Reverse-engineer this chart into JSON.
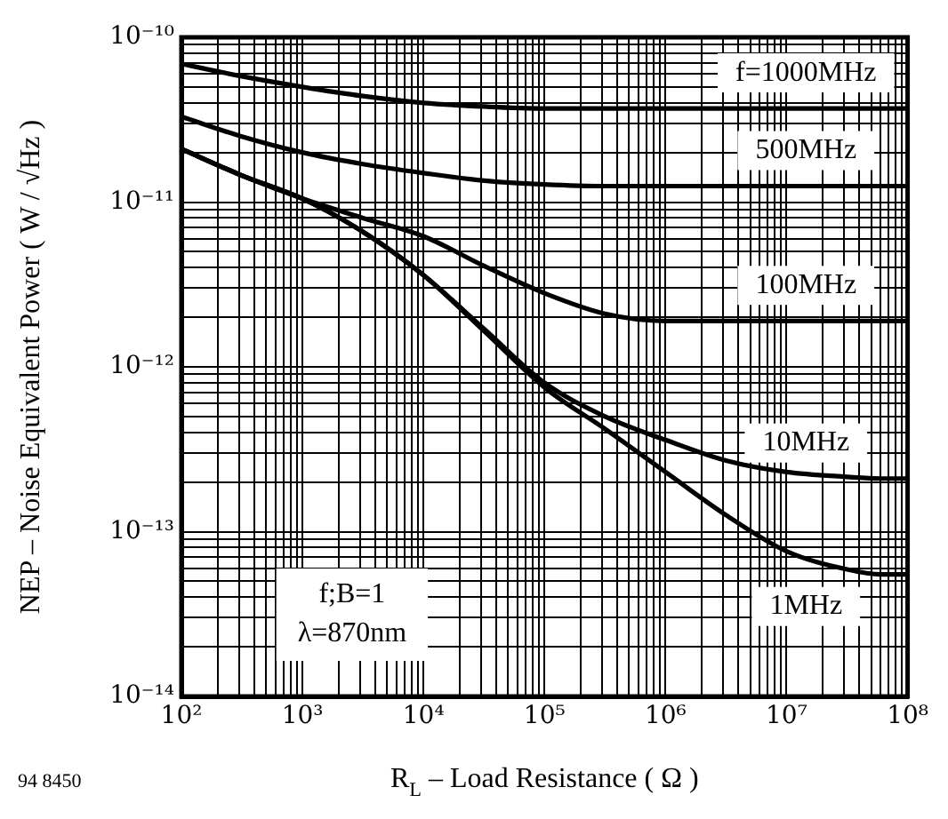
{
  "chart_data": {
    "type": "line",
    "xlabel": "R$_{L}$ – Load Resistance ( Ω )",
    "ylabel": "NEP – Noise Equivalent Power ( W / √Hz )",
    "log": "xy",
    "grid": true,
    "legend": false,
    "marker": "none",
    "line_style": "solid",
    "annotations": [
      "f;B=1",
      "λ=870nm",
      "94 8450"
    ],
    "x": [
      100,
      316,
      1000,
      3162,
      10000,
      31623,
      100000,
      316228,
      1000000,
      3162278,
      10000000,
      31622777,
      60000000,
      100000000
    ],
    "series": [
      {
        "name": "f=1000MHz",
        "color": "#000000",
        "values": [
          6.9e-11,
          5.8e-11,
          5e-11,
          4.4e-11,
          4e-11,
          3.8e-11,
          3.7e-11,
          3.7e-11,
          3.7e-11,
          3.7e-11,
          3.7e-11,
          3.7e-11,
          3.7e-11,
          3.7e-11
        ]
      },
      {
        "name": "500MHz",
        "color": "#000000",
        "values": [
          3.3e-11,
          2.5e-11,
          2e-11,
          1.7e-11,
          1.5e-11,
          1.35e-11,
          1.28e-11,
          1.25e-11,
          1.25e-11,
          1.25e-11,
          1.25e-11,
          1.25e-11,
          1.25e-11,
          1.25e-11
        ]
      },
      {
        "name": "100MHz",
        "color": "#000000",
        "values": [
          2.1e-11,
          1.45e-11,
          1.05e-11,
          8e-12,
          6.2e-12,
          4.1e-12,
          2.8e-12,
          2.1e-12,
          1.9e-12,
          1.9e-12,
          1.9e-12,
          1.9e-12,
          1.9e-12,
          1.9e-12
        ]
      },
      {
        "name": "10MHz",
        "color": "#000000",
        "values": [
          2.1e-11,
          1.45e-11,
          1.05e-11,
          6.6e-12,
          3.6e-12,
          1.7e-12,
          8e-13,
          5e-13,
          3.6e-13,
          2.7e-13,
          2.3e-13,
          2.15e-13,
          2.1e-13,
          2.1e-13
        ]
      },
      {
        "name": "1MHz",
        "color": "#000000",
        "values": [
          2.1e-11,
          1.45e-11,
          1.05e-11,
          6.6e-12,
          3.6e-12,
          1.65e-12,
          7.5e-13,
          4.2e-13,
          2.3e-13,
          1.26e-13,
          7.6e-14,
          5.9e-14,
          5.5e-14,
          5.5e-14
        ]
      }
    ],
    "xlim": [
      100,
      100000000
    ],
    "ylim": [
      1e-14,
      1e-10
    ],
    "xticks": [
      {
        "value": 100,
        "label": "10²"
      },
      {
        "value": 200,
        "label": null
      },
      {
        "value": 300,
        "label": null
      },
      {
        "value": 400,
        "label": null
      },
      {
        "value": 500,
        "label": null
      },
      {
        "value": 600,
        "label": null
      },
      {
        "value": 700,
        "label": null
      },
      {
        "value": 800,
        "label": null
      },
      {
        "value": 900,
        "label": null
      },
      {
        "value": 1000,
        "label": "10³"
      },
      {
        "value": 2000,
        "label": null
      },
      {
        "value": 3000,
        "label": null
      },
      {
        "value": 4000,
        "label": null
      },
      {
        "value": 5000,
        "label": null
      },
      {
        "value": 6000,
        "label": null
      },
      {
        "value": 7000,
        "label": null
      },
      {
        "value": 8000,
        "label": null
      },
      {
        "value": 9000,
        "label": null
      },
      {
        "value": 10000,
        "label": "10⁴"
      },
      {
        "value": 20000,
        "label": null
      },
      {
        "value": 30000,
        "label": null
      },
      {
        "value": 40000,
        "label": null
      },
      {
        "value": 50000,
        "label": null
      },
      {
        "value": 60000,
        "label": null
      },
      {
        "value": 70000,
        "label": null
      },
      {
        "value": 80000,
        "label": null
      },
      {
        "value": 90000,
        "label": null
      },
      {
        "value": 100000,
        "label": "10⁵"
      },
      {
        "value": 200000,
        "label": null
      },
      {
        "value": 300000,
        "label": null
      },
      {
        "value": 400000,
        "label": null
      },
      {
        "value": 500000,
        "label": null
      },
      {
        "value": 600000,
        "label": null
      },
      {
        "value": 700000,
        "label": null
      },
      {
        "value": 800000,
        "label": null
      },
      {
        "value": 900000,
        "label": null
      },
      {
        "value": 1000000,
        "label": "10⁶"
      },
      {
        "value": 2000000,
        "label": null
      },
      {
        "value": 3000000,
        "label": null
      },
      {
        "value": 4000000,
        "label": null
      },
      {
        "value": 5000000,
        "label": null
      },
      {
        "value": 6000000,
        "label": null
      },
      {
        "value": 7000000,
        "label": null
      },
      {
        "value": 8000000,
        "label": null
      },
      {
        "value": 9000000,
        "label": null
      },
      {
        "value": 10000000,
        "label": "10⁷"
      },
      {
        "value": 20000000,
        "label": null
      },
      {
        "value": 30000000,
        "label": null
      },
      {
        "value": 40000000,
        "label": null
      },
      {
        "value": 50000000,
        "label": null
      },
      {
        "value": 60000000,
        "label": null
      },
      {
        "value": 70000000,
        "label": null
      },
      {
        "value": 80000000,
        "label": null
      },
      {
        "value": 90000000,
        "label": null
      },
      {
        "value": 100000000,
        "label": "10⁸"
      }
    ],
    "yticks": [
      {
        "value": 1e-14,
        "label": "10⁻¹⁴"
      },
      {
        "value": 2e-14,
        "label": null
      },
      {
        "value": 3e-14,
        "label": null
      },
      {
        "value": 4e-14,
        "label": null
      },
      {
        "value": 5e-14,
        "label": null
      },
      {
        "value": 6e-14,
        "label": null
      },
      {
        "value": 7e-14,
        "label": null
      },
      {
        "value": 8e-14,
        "label": null
      },
      {
        "value": 9e-14,
        "label": null
      },
      {
        "value": 1e-13,
        "label": "10⁻¹³"
      },
      {
        "value": 2e-13,
        "label": null
      },
      {
        "value": 3e-13,
        "label": null
      },
      {
        "value": 4e-13,
        "label": null
      },
      {
        "value": 5e-13,
        "label": null
      },
      {
        "value": 6e-13,
        "label": null
      },
      {
        "value": 7e-13,
        "label": null
      },
      {
        "value": 8e-13,
        "label": null
      },
      {
        "value": 9e-13,
        "label": null
      },
      {
        "value": 1e-12,
        "label": "10⁻¹²"
      },
      {
        "value": 2e-12,
        "label": null
      },
      {
        "value": 3e-12,
        "label": null
      },
      {
        "value": 4e-12,
        "label": null
      },
      {
        "value": 5e-12,
        "label": null
      },
      {
        "value": 6e-12,
        "label": null
      },
      {
        "value": 7e-12,
        "label": null
      },
      {
        "value": 8e-12,
        "label": null
      },
      {
        "value": 9e-12,
        "label": null
      },
      {
        "value": 1e-11,
        "label": "10⁻¹¹"
      },
      {
        "value": 2e-11,
        "label": null
      },
      {
        "value": 3e-11,
        "label": null
      },
      {
        "value": 4e-11,
        "label": null
      },
      {
        "value": 5e-11,
        "label": null
      },
      {
        "value": 6e-11,
        "label": null
      },
      {
        "value": 7e-11,
        "label": null
      },
      {
        "value": 8e-11,
        "label": null
      },
      {
        "value": 9e-11,
        "label": null
      },
      {
        "value": 1e-10,
        "label": "10⁻¹⁰"
      }
    ]
  }
}
